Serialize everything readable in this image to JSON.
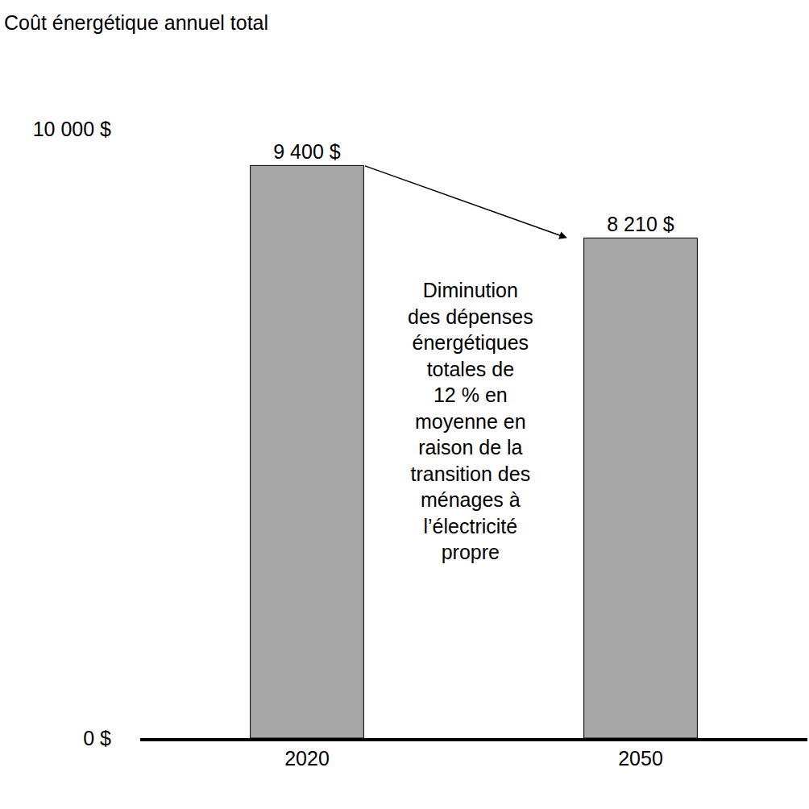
{
  "chart_data": {
    "type": "bar",
    "title": "Coût énergétique annuel total",
    "categories": [
      "2020",
      "2050"
    ],
    "values": [
      9400,
      8210
    ],
    "value_labels": [
      "9 400 $",
      "8 210 $"
    ],
    "data_labels": true,
    "color": "#a6a6a6",
    "ylim": [
      0,
      10000
    ],
    "yticks": [
      {
        "value": 0,
        "label": "0 $"
      },
      {
        "value": 10000,
        "label": "10 000 $"
      }
    ],
    "grid": true,
    "annotation": [
      "Diminution",
      "des dépenses",
      "énergétiques",
      "totales de",
      "12 % en",
      "moyenne en",
      "raison de la",
      "transition des",
      "ménages à",
      "l’électricité",
      "propre"
    ]
  }
}
